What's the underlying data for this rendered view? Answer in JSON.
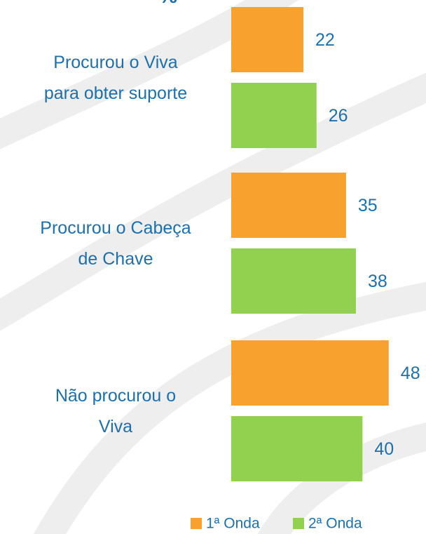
{
  "chart_data": {
    "type": "barh",
    "title": "%",
    "categories": [
      "Procurou o Viva\npara obter suporte",
      "Procurou o Cabeça\nde Chave",
      "Não procurou o\nViva"
    ],
    "series": [
      {
        "name": "1ª Onda",
        "color": "#F9A12E",
        "values": [
          22,
          35,
          48
        ]
      },
      {
        "name": "2ª Onda",
        "color": "#92D050",
        "values": [
          26,
          38,
          40
        ]
      }
    ],
    "xlim": [
      0,
      60
    ],
    "legend": "bottom"
  }
}
